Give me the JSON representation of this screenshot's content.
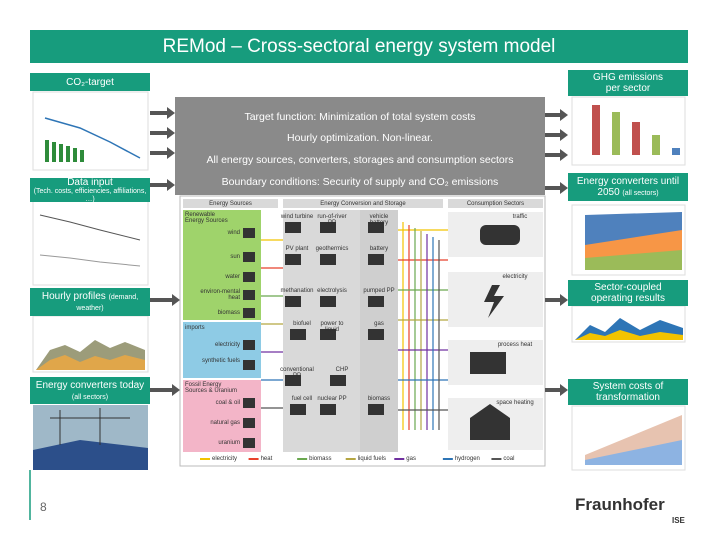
{
  "title": "REMod – Cross-sectoral energy system model",
  "inputs": [
    {
      "label": "CO₂-target"
    },
    {
      "label": "Data input",
      "note": "(Tech. costs, efficiencies, affiliations, …)"
    },
    {
      "label": "Hourly profiles",
      "note": "(demand, weather)"
    },
    {
      "label": "Energy converters today",
      "note": "(all sectors)"
    }
  ],
  "outputs": [
    {
      "label": "GHG emissions per sector"
    },
    {
      "label": "Energy converters until 2050",
      "note": "(all sectors)"
    },
    {
      "label": "Sector-coupled operating results"
    },
    {
      "label": "System costs of transformation"
    }
  ],
  "model": {
    "lines": [
      "Target function: Minimization of total system costs",
      "Hourly optimization. Non-linear.",
      "All energy sources, converters, storages and consumption sectors",
      "Boundary conditions: Security of supply and CO₂ emissions"
    ]
  },
  "diagram": {
    "headers": [
      "Energy Sources",
      "Energy Conversion and Storage",
      "Consumption Sectors"
    ],
    "renewables": {
      "title": "Renewable Energy Sources",
      "items": [
        "wind",
        "sun",
        "water",
        "environ-mental heat",
        "biomass"
      ]
    },
    "imports": {
      "title": "imports",
      "items": [
        "electricity",
        "synthetic fuels"
      ]
    },
    "fossil": {
      "title": "Fossil Energy Sources & Uranium",
      "items": [
        "coal & oil",
        "natural gas",
        "uranium"
      ]
    },
    "conversion": [
      "wind turbine",
      "run-of-river PP",
      "PV plant",
      "geothermics",
      "methanation",
      "electrolysis",
      "biofuel",
      "power to liquid",
      "conventional PP",
      "CHP",
      "fuel cell",
      "nuclear PP"
    ],
    "storage": [
      "vehicle battery",
      "battery",
      "pumped PP",
      "gas",
      "biomass"
    ],
    "sectors": [
      "traffic",
      "electricity",
      "process heat",
      "space heating"
    ],
    "legend": [
      {
        "name": "electricity",
        "color": "#f2c300"
      },
      {
        "name": "heat",
        "color": "#e8412c"
      },
      {
        "name": "biomass",
        "color": "#6aa84f"
      },
      {
        "name": "liquid fuels",
        "color": "#b5a642"
      },
      {
        "name": "gas",
        "color": "#7030a0"
      },
      {
        "name": "hydrogen",
        "color": "#2e75b6"
      },
      {
        "name": "coal",
        "color": "#555555"
      }
    ]
  },
  "footer": {
    "page": "8",
    "logo": "Fraunhofer",
    "unit": "ISE"
  }
}
